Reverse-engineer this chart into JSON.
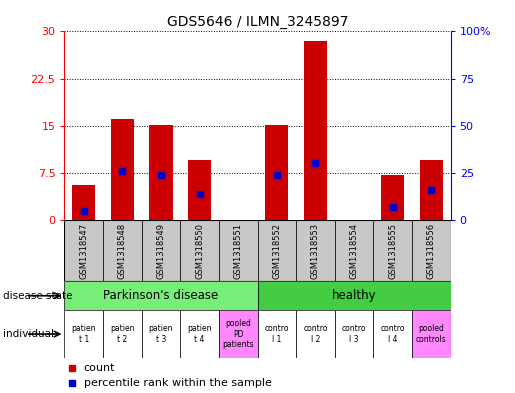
{
  "title": "GDS5646 / ILMN_3245897",
  "samples": [
    "GSM1318547",
    "GSM1318548",
    "GSM1318549",
    "GSM1318550",
    "GSM1318551",
    "GSM1318552",
    "GSM1318553",
    "GSM1318554",
    "GSM1318555",
    "GSM1318556"
  ],
  "count_values": [
    5.5,
    16.0,
    15.2,
    9.5,
    0.0,
    15.2,
    28.5,
    0.0,
    7.2,
    9.5
  ],
  "percentile_values": [
    5.0,
    26.0,
    24.0,
    14.0,
    0.0,
    24.0,
    30.0,
    0.0,
    7.0,
    16.0
  ],
  "left_yticks": [
    0,
    7.5,
    15,
    22.5,
    30
  ],
  "right_yticks": [
    0,
    25,
    50,
    75,
    100
  ],
  "left_ylim": [
    0,
    30
  ],
  "right_ylim": [
    0,
    100
  ],
  "left_tick_labels": [
    "0",
    "7.5",
    "15",
    "22.5",
    "30"
  ],
  "right_tick_labels": [
    "0",
    "25",
    "50",
    "75",
    "100%"
  ],
  "bar_color": "#cc0000",
  "blue_color": "#0000cc",
  "ds_pd_color": "#77ee77",
  "ds_healthy_color": "#44cc44",
  "gsm_bg": "#c8c8c8",
  "ind_white": "#ffffff",
  "ind_pink": "#ff88ff",
  "background_color": "#ffffff"
}
